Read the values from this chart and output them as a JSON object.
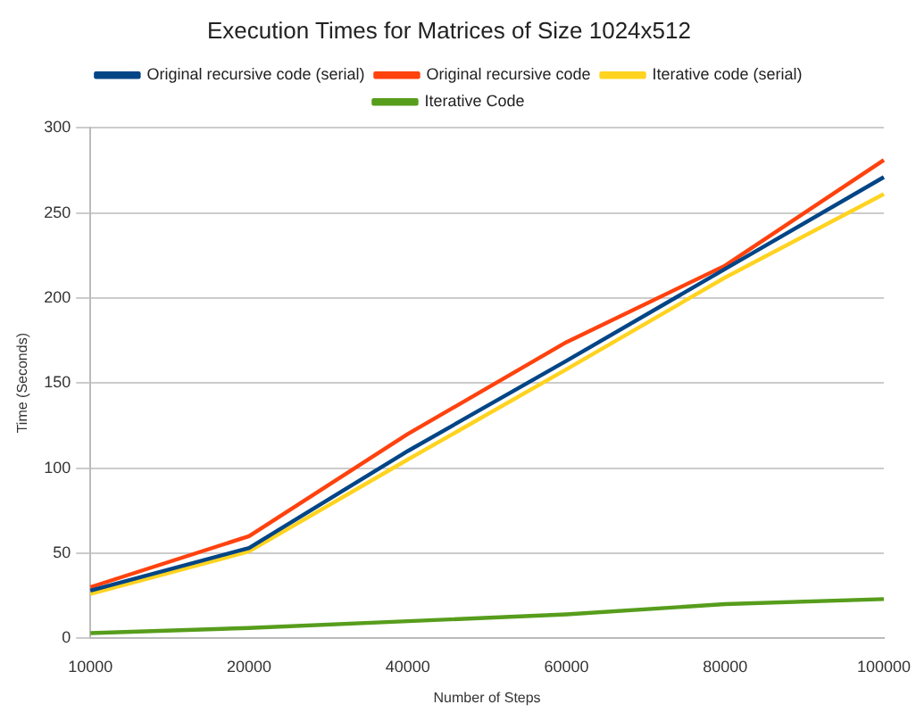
{
  "chart_data": {
    "type": "line",
    "title": "Execution Times for Matrices of Size 1024x512",
    "xlabel": "Number of Steps",
    "ylabel": "Time (Seconds)",
    "categories": [
      "10000",
      "20000",
      "40000",
      "60000",
      "80000",
      "100000"
    ],
    "series": [
      {
        "name": "Original recursive code (serial)",
        "color": "#004586",
        "values": [
          28,
          53,
          110,
          163,
          217,
          271
        ]
      },
      {
        "name": "Original recursive code",
        "color": "#ff420e",
        "values": [
          30,
          60,
          120,
          174,
          219,
          281
        ]
      },
      {
        "name": "Iterative code (serial)",
        "color": "#ffd320",
        "values": [
          26,
          51,
          105,
          158,
          212,
          261
        ]
      },
      {
        "name": "Iterative Code",
        "color": "#579d1c",
        "values": [
          3,
          6,
          10,
          14,
          20,
          23
        ]
      }
    ],
    "ylim": [
      0,
      300
    ],
    "yticks": [
      0,
      50,
      100,
      150,
      200,
      250,
      300
    ],
    "grid": "y",
    "legend": "top",
    "marker": "none",
    "line_style": "solid"
  }
}
